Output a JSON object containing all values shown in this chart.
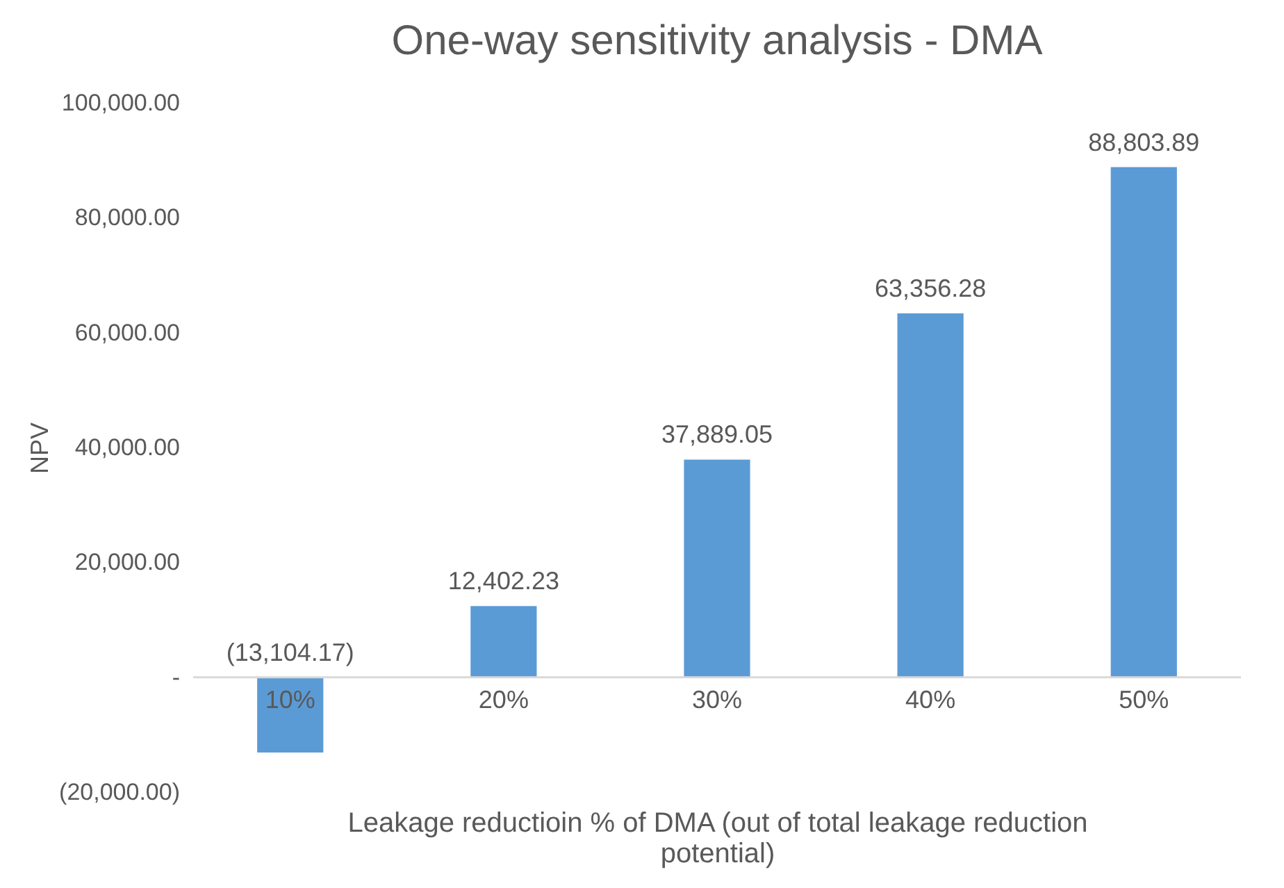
{
  "chart_data": {
    "type": "bar",
    "title": "One-way sensitivity analysis - DMA",
    "xlabel": "Leakage reductioin % of DMA (out of total leakage reduction potential)",
    "ylabel": "NPV",
    "categories": [
      "10%",
      "20%",
      "30%",
      "40%",
      "50%"
    ],
    "values": [
      -13104.17,
      12402.23,
      37889.05,
      63356.28,
      88803.89
    ],
    "value_labels": [
      "(13,104.17)",
      "12,402.23",
      "37,889.05",
      "63,356.28",
      "88,803.89"
    ],
    "color": "#5b9bd5",
    "ylim": [
      -20000,
      100000
    ],
    "yticks": [
      {
        "value": -20000,
        "label": "(20,000.00)"
      },
      {
        "value": 0,
        "label": "-"
      },
      {
        "value": 20000,
        "label": "20,000.00"
      },
      {
        "value": 40000,
        "label": "40,000.00"
      },
      {
        "value": 60000,
        "label": "60,000.00"
      },
      {
        "value": 80000,
        "label": "80,000.00"
      },
      {
        "value": 100000,
        "label": "100,000.00"
      }
    ],
    "grid": false
  }
}
